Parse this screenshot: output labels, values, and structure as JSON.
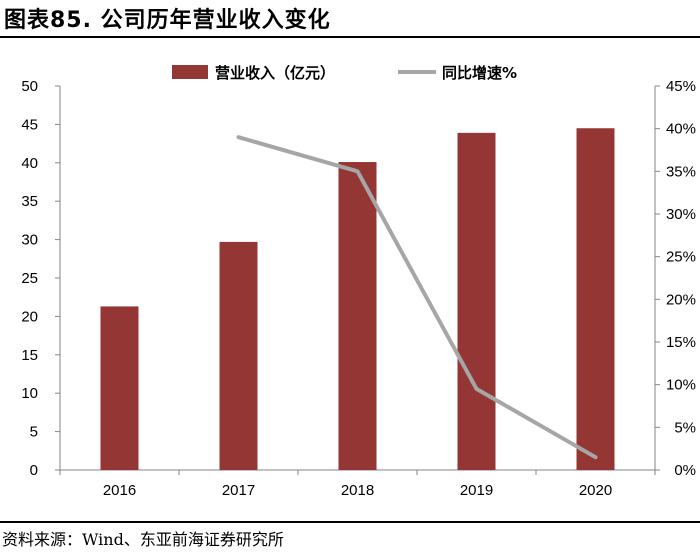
{
  "title": "图表85. 公司历年营业收入变化",
  "source": "资料来源：Wind、东亚前海证券研究所",
  "chart_data": {
    "type": "bar",
    "categories": [
      "2016",
      "2017",
      "2018",
      "2019",
      "2020"
    ],
    "series": [
      {
        "name": "营业收入（亿元）",
        "type": "bar",
        "axis": "left",
        "values": [
          21.3,
          29.7,
          40.1,
          43.9,
          44.5
        ],
        "color": "#943634"
      },
      {
        "name": "同比增速%",
        "type": "line",
        "axis": "right",
        "values": [
          null,
          0.39,
          0.35,
          0.095,
          0.015
        ],
        "color": "#A6A6A6"
      }
    ],
    "y_left": {
      "min": 0,
      "max": 50,
      "step": 5,
      "tick_labels": [
        "0",
        "5",
        "10",
        "15",
        "20",
        "25",
        "30",
        "35",
        "40",
        "45",
        "50"
      ]
    },
    "y_right": {
      "min": 0,
      "max": 0.45,
      "step": 0.05,
      "tick_labels": [
        "0%",
        "5%",
        "10%",
        "15%",
        "20%",
        "25%",
        "30%",
        "35%",
        "40%",
        "45%"
      ]
    },
    "legend_position": "top",
    "grid": false
  }
}
